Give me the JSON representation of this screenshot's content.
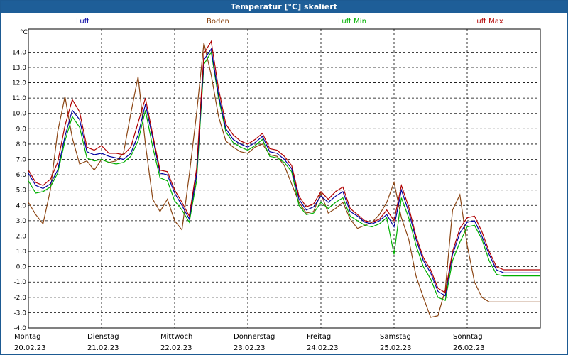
{
  "window": {
    "title": "Temperatur [°C] skaliert"
  },
  "legend": [
    {
      "label": "Luft",
      "color": "#0000a0"
    },
    {
      "label": "Boden",
      "color": "#8b4513"
    },
    {
      "label": "Luft Min",
      "color": "#00b000"
    },
    {
      "label": "Luft Max",
      "color": "#b00000"
    }
  ],
  "chart_data": {
    "type": "line",
    "ylabel": "°C",
    "ylim": [
      -4.0,
      15.5
    ],
    "xlim": [
      0,
      7.0
    ],
    "grid": true,
    "legend_placement": "top",
    "yticks": [
      "14.0",
      "13.0",
      "12.0",
      "11.0",
      "10.0",
      "9.0",
      "8.0",
      "7.0",
      "6.0",
      "5.0",
      "4.0",
      "3.0",
      "2.0",
      "1.0",
      "0.0",
      "-1.0",
      "-2.0",
      "-3.0",
      "-4.0"
    ],
    "x_categories": [
      {
        "day": "Montag",
        "date": "20.02.23"
      },
      {
        "day": "Dienstag",
        "date": "21.02.23"
      },
      {
        "day": "Mittwoch",
        "date": "22.02.23"
      },
      {
        "day": "Donnerstag",
        "date": "23.02.23"
      },
      {
        "day": "Freitag",
        "date": "24.02.23"
      },
      {
        "day": "Samstag",
        "date": "25.02.23"
      },
      {
        "day": "Sonntag",
        "date": "26.02.23"
      }
    ],
    "series": [
      {
        "name": "Luft",
        "color": "#0000a0",
        "x": [
          0,
          0.1,
          0.2,
          0.3,
          0.4,
          0.5,
          0.6,
          0.7,
          0.8,
          0.9,
          1.0,
          1.1,
          1.2,
          1.3,
          1.4,
          1.5,
          1.6,
          1.7,
          1.8,
          1.9,
          2.0,
          2.1,
          2.2,
          2.3,
          2.4,
          2.5,
          2.6,
          2.7,
          2.8,
          2.9,
          3.0,
          3.1,
          3.2,
          3.3,
          3.4,
          3.5,
          3.6,
          3.7,
          3.8,
          3.9,
          4.0,
          4.1,
          4.2,
          4.3,
          4.4,
          4.5,
          4.6,
          4.7,
          4.8,
          4.9,
          5.0,
          5.1,
          5.2,
          5.3,
          5.4,
          5.5,
          5.6,
          5.7,
          5.8,
          5.9,
          6.0,
          6.1,
          6.2,
          6.3,
          6.4,
          6.5,
          6.6,
          6.7,
          6.8,
          6.9,
          7.0
        ],
        "values": [
          6.1,
          5.3,
          5.1,
          5.4,
          6.3,
          8.5,
          10.2,
          9.6,
          7.5,
          7.3,
          7.4,
          7.2,
          7.1,
          7.0,
          7.4,
          8.6,
          10.6,
          8.4,
          6.1,
          6.0,
          4.8,
          4.0,
          3.1,
          6.0,
          13.5,
          14.2,
          11.2,
          9.0,
          8.3,
          8.0,
          7.8,
          8.1,
          8.5,
          7.5,
          7.4,
          7.0,
          6.4,
          4.4,
          3.7,
          3.9,
          4.6,
          4.2,
          4.6,
          4.9,
          3.6,
          3.3,
          2.9,
          2.8,
          3.0,
          3.4,
          2.6,
          5.0,
          3.6,
          1.8,
          0.4,
          -0.4,
          -1.6,
          -1.9,
          0.8,
          2.2,
          2.9,
          3.0,
          2.0,
          0.8,
          -0.2,
          -0.4,
          -0.4,
          -0.4,
          -0.4,
          -0.4,
          -0.4
        ]
      },
      {
        "name": "Boden",
        "color": "#8b4513",
        "x": [
          0,
          0.1,
          0.2,
          0.3,
          0.4,
          0.5,
          0.6,
          0.7,
          0.8,
          0.9,
          1.0,
          1.1,
          1.2,
          1.3,
          1.4,
          1.5,
          1.6,
          1.7,
          1.8,
          1.9,
          2.0,
          2.1,
          2.2,
          2.3,
          2.4,
          2.5,
          2.6,
          2.7,
          2.8,
          2.9,
          3.0,
          3.1,
          3.2,
          3.3,
          3.4,
          3.5,
          3.6,
          3.7,
          3.8,
          3.9,
          4.0,
          4.1,
          4.2,
          4.3,
          4.4,
          4.5,
          4.6,
          4.7,
          4.8,
          4.9,
          5.0,
          5.1,
          5.2,
          5.3,
          5.4,
          5.5,
          5.6,
          5.7,
          5.8,
          5.9,
          6.0,
          6.1,
          6.2,
          6.3,
          6.4,
          6.5,
          6.6,
          6.7,
          6.8,
          6.9,
          7.0
        ],
        "values": [
          4.2,
          3.4,
          2.8,
          5.0,
          8.8,
          11.1,
          8.4,
          6.7,
          6.9,
          6.3,
          7.0,
          6.8,
          6.9,
          7.4,
          10.0,
          12.4,
          8.0,
          4.4,
          3.6,
          4.4,
          3.0,
          2.4,
          6.0,
          10.0,
          14.6,
          12.5,
          9.8,
          8.2,
          7.8,
          7.5,
          7.4,
          7.8,
          8.0,
          7.3,
          7.2,
          6.6,
          5.4,
          4.2,
          3.5,
          3.6,
          4.8,
          3.5,
          3.8,
          4.2,
          3.1,
          2.5,
          2.7,
          2.9,
          3.4,
          4.2,
          5.5,
          3.2,
          1.8,
          -0.6,
          -2.0,
          -3.3,
          -3.2,
          -1.5,
          3.7,
          4.7,
          1.4,
          -1.0,
          -2.0,
          -2.3,
          -2.3,
          -2.3,
          -2.3,
          -2.3,
          -2.3,
          -2.3,
          -2.3
        ]
      },
      {
        "name": "Luft Min",
        "color": "#00b000",
        "x": [
          0,
          0.1,
          0.2,
          0.3,
          0.4,
          0.5,
          0.6,
          0.7,
          0.8,
          0.9,
          1.0,
          1.1,
          1.2,
          1.3,
          1.4,
          1.5,
          1.6,
          1.7,
          1.8,
          1.9,
          2.0,
          2.1,
          2.2,
          2.3,
          2.4,
          2.5,
          2.6,
          2.7,
          2.8,
          2.9,
          3.0,
          3.1,
          3.2,
          3.3,
          3.4,
          3.5,
          3.6,
          3.7,
          3.8,
          3.9,
          4.0,
          4.1,
          4.2,
          4.3,
          4.4,
          4.5,
          4.6,
          4.7,
          4.8,
          4.9,
          5.0,
          5.1,
          5.2,
          5.3,
          5.4,
          5.5,
          5.6,
          5.7,
          5.8,
          5.9,
          6.0,
          6.1,
          6.2,
          6.3,
          6.4,
          6.5,
          6.6,
          6.7,
          6.8,
          6.9,
          7.0
        ],
        "values": [
          5.6,
          4.8,
          4.9,
          5.2,
          6.1,
          8.2,
          9.8,
          9.1,
          7.1,
          6.9,
          7.0,
          6.8,
          6.7,
          6.8,
          7.2,
          8.2,
          10.2,
          7.8,
          5.8,
          5.6,
          4.3,
          3.7,
          2.9,
          5.6,
          13.2,
          14.0,
          11.0,
          8.8,
          8.1,
          7.8,
          7.6,
          7.9,
          8.3,
          7.2,
          7.1,
          6.8,
          6.2,
          4.0,
          3.4,
          3.5,
          4.2,
          3.8,
          4.2,
          4.5,
          3.3,
          3.0,
          2.7,
          2.6,
          2.8,
          3.2,
          0.8,
          4.5,
          3.2,
          1.4,
          0.0,
          -0.8,
          -2.0,
          -2.2,
          0.4,
          1.6,
          2.6,
          2.7,
          1.8,
          0.4,
          -0.5,
          -0.6,
          -0.6,
          -0.6,
          -0.6,
          -0.6,
          -0.6
        ]
      },
      {
        "name": "Luft Max",
        "color": "#b00000",
        "x": [
          0,
          0.1,
          0.2,
          0.3,
          0.4,
          0.5,
          0.6,
          0.7,
          0.8,
          0.9,
          1.0,
          1.1,
          1.2,
          1.3,
          1.4,
          1.5,
          1.6,
          1.7,
          1.8,
          1.9,
          2.0,
          2.1,
          2.2,
          2.3,
          2.4,
          2.5,
          2.6,
          2.7,
          2.8,
          2.9,
          3.0,
          3.1,
          3.2,
          3.3,
          3.4,
          3.5,
          3.6,
          3.7,
          3.8,
          3.9,
          4.0,
          4.1,
          4.2,
          4.3,
          4.4,
          4.5,
          4.6,
          4.7,
          4.8,
          4.9,
          5.0,
          5.1,
          5.2,
          5.3,
          5.4,
          5.5,
          5.6,
          5.7,
          5.8,
          5.9,
          6.0,
          6.1,
          6.2,
          6.3,
          6.4,
          6.5,
          6.6,
          6.7,
          6.8,
          6.9,
          7.0
        ],
        "values": [
          6.3,
          5.5,
          5.3,
          5.7,
          6.8,
          9.2,
          10.9,
          10.1,
          7.8,
          7.6,
          7.9,
          7.4,
          7.4,
          7.3,
          7.8,
          9.4,
          11.0,
          8.6,
          6.3,
          6.2,
          5.0,
          4.2,
          3.3,
          6.4,
          13.9,
          14.7,
          11.6,
          9.3,
          8.6,
          8.2,
          8.0,
          8.3,
          8.7,
          7.7,
          7.6,
          7.2,
          6.6,
          4.6,
          3.9,
          4.1,
          4.9,
          4.4,
          4.9,
          5.2,
          3.8,
          3.4,
          3.0,
          2.9,
          3.1,
          3.7,
          3.0,
          5.3,
          3.9,
          2.0,
          0.6,
          -0.2,
          -1.4,
          -1.7,
          1.0,
          2.5,
          3.2,
          3.3,
          2.3,
          1.0,
          0.0,
          -0.2,
          -0.2,
          -0.2,
          -0.2,
          -0.2,
          -0.2
        ]
      }
    ]
  }
}
